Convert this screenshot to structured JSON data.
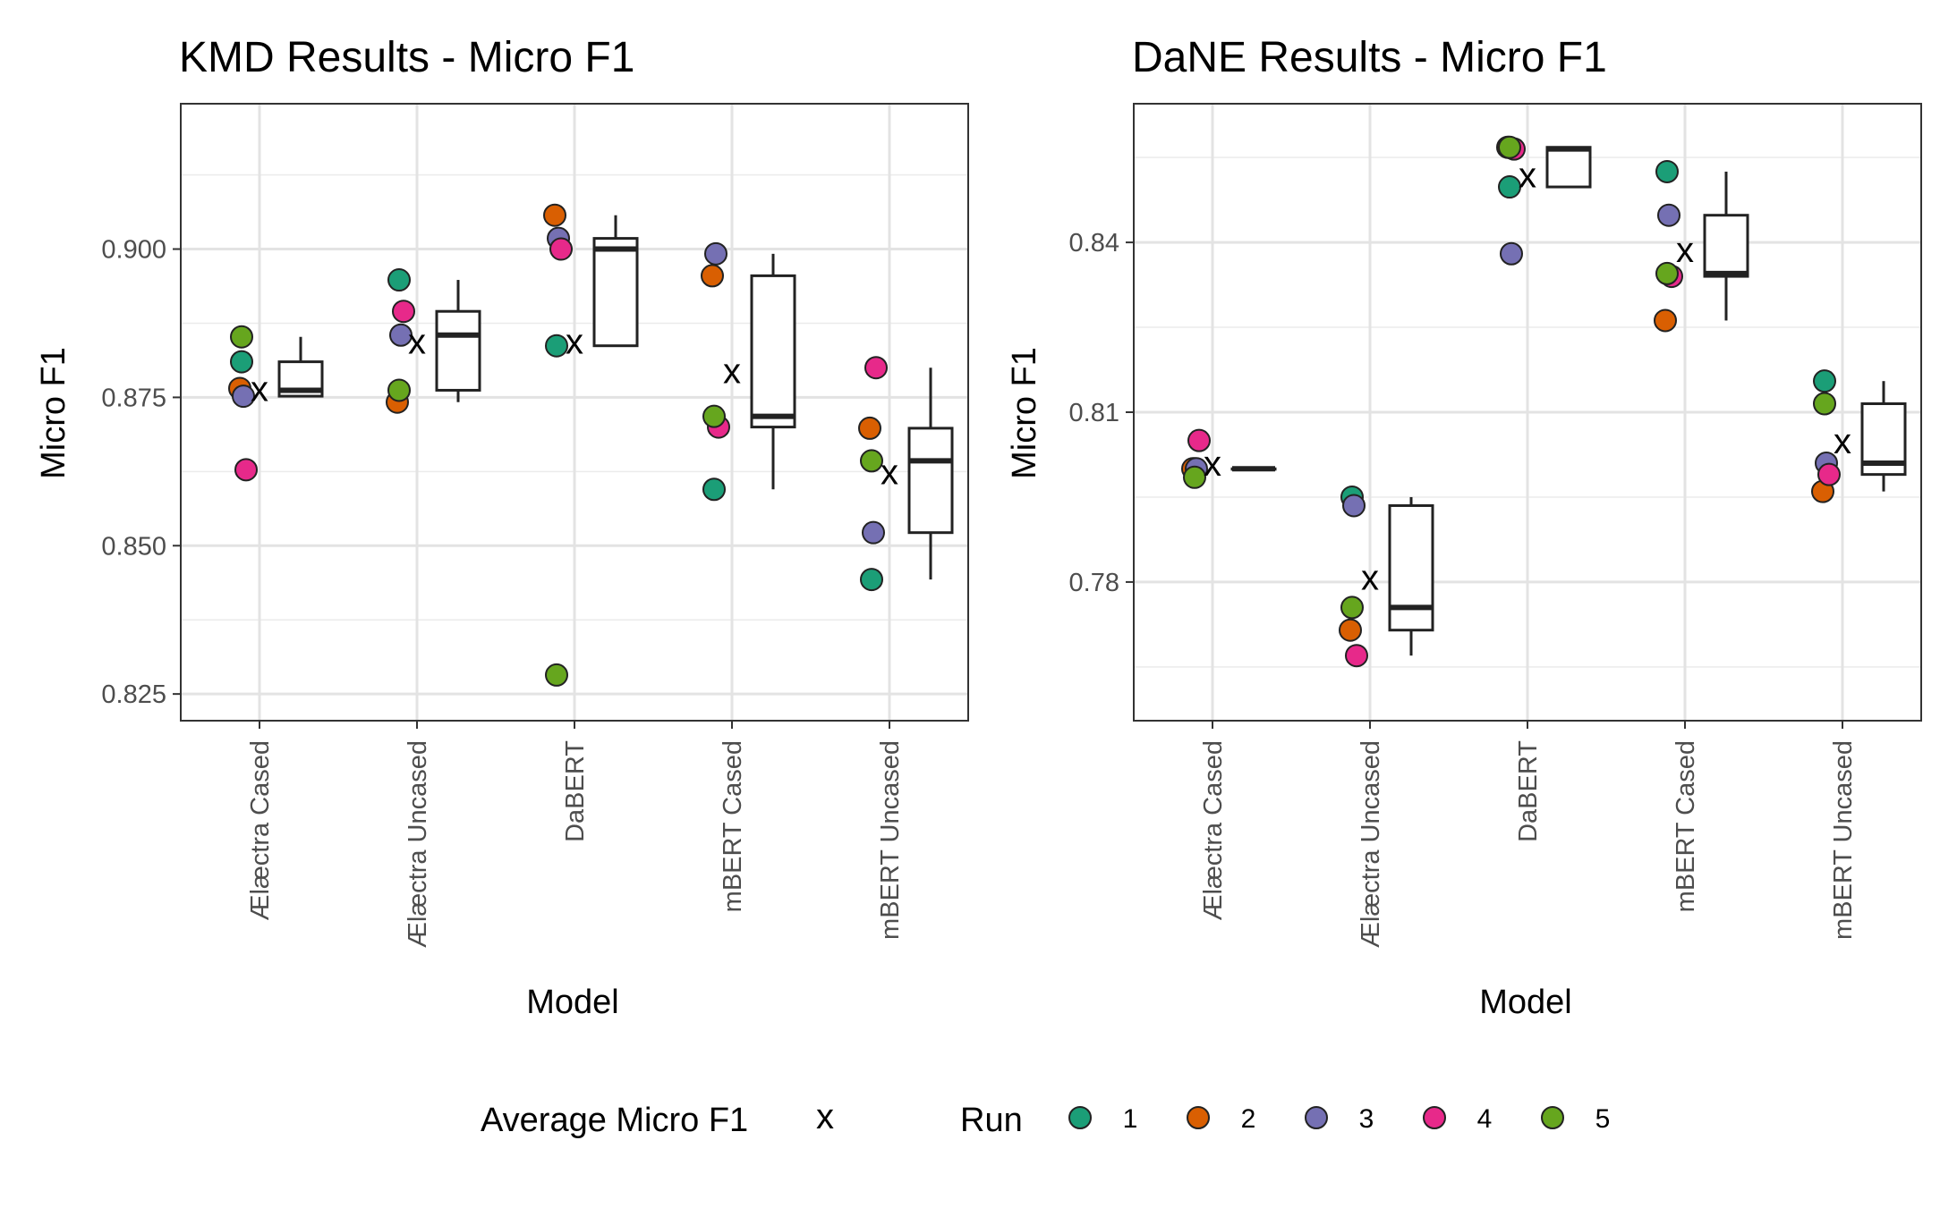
{
  "chart_data": [
    {
      "type": "box",
      "title": "KMD Results - Micro F1",
      "xlabel": "Model",
      "ylabel": "Micro F1",
      "ylim": [
        0.8205,
        0.9245
      ],
      "yticks": [
        0.825,
        0.85,
        0.875,
        0.9
      ],
      "ytick_labels": [
        "0.825",
        "0.850",
        "0.875",
        "0.900"
      ],
      "grid": true,
      "categories": [
        "Ælæctra Cased",
        "Ælæctra Uncased",
        "DaBERT",
        "mBERT Cased",
        "mBERT Uncased"
      ],
      "runs": {
        "Ælæctra Cased": [
          0.881,
          0.8765,
          0.8752,
          0.8628,
          0.8852
        ],
        "Ælæctra Uncased": [
          0.8948,
          0.8742,
          0.8855,
          0.8895,
          0.8762
        ],
        "DaBERT": [
          0.8837,
          0.9057,
          0.9018,
          0.9,
          0.8282
        ],
        "mBERT Cased": [
          0.8595,
          0.8955,
          0.8992,
          0.87,
          0.8718
        ],
        "mBERT Uncased": [
          0.8443,
          0.8698,
          0.8522,
          0.88,
          0.8643
        ]
      },
      "boxes": {
        "Ælæctra Cased": {
          "min": 0.8752,
          "q1": 0.8752,
          "median": 0.8762,
          "q3": 0.881,
          "max": 0.8852
        },
        "Ælæctra Uncased": {
          "min": 0.8742,
          "q1": 0.8762,
          "median": 0.8855,
          "q3": 0.8895,
          "max": 0.8948
        },
        "DaBERT": {
          "min": 0.8837,
          "q1": 0.8837,
          "median": 0.9,
          "q3": 0.9018,
          "max": 0.9057
        },
        "mBERT Cased": {
          "min": 0.8595,
          "q1": 0.87,
          "median": 0.8718,
          "q3": 0.8955,
          "max": 0.8992
        },
        "mBERT Uncased": {
          "min": 0.8443,
          "q1": 0.8522,
          "median": 0.8643,
          "q3": 0.8698,
          "max": 0.88
        }
      },
      "means": {
        "Ælæctra Cased": 0.8762,
        "Ælæctra Uncased": 0.8842,
        "DaBERT": 0.8842,
        "mBERT Cased": 0.8792,
        "mBERT Uncased": 0.8622
      }
    },
    {
      "type": "box",
      "title": "DaNE Results - Micro F1",
      "xlabel": "Model",
      "ylabel": "Micro F1",
      "ylim": [
        0.7555,
        0.8645
      ],
      "yticks": [
        0.78,
        0.81,
        0.84
      ],
      "ytick_labels": [
        "0.78",
        "0.81",
        "0.84"
      ],
      "grid": true,
      "categories": [
        "Ælæctra Cased",
        "Ælæctra Uncased",
        "DaBERT",
        "mBERT Cased",
        "mBERT Uncased"
      ],
      "runs": {
        "Ælæctra Cased": [
          0.8,
          0.8,
          0.8,
          0.805,
          0.7985
        ],
        "Ælæctra Uncased": [
          0.795,
          0.7715,
          0.7935,
          0.767,
          0.7755
        ],
        "DaBERT": [
          0.8498,
          0.8568,
          0.838,
          0.8565,
          0.8568
        ],
        "mBERT Cased": [
          0.8525,
          0.8262,
          0.8448,
          0.834,
          0.8345
        ],
        "mBERT Uncased": [
          0.8155,
          0.796,
          0.801,
          0.799,
          0.8115
        ]
      },
      "boxes": {
        "Ælæctra Cased": {
          "min": 0.8,
          "q1": 0.8,
          "median": 0.8,
          "q3": 0.8,
          "max": 0.8
        },
        "Ælæctra Uncased": {
          "min": 0.767,
          "q1": 0.7715,
          "median": 0.7755,
          "q3": 0.7935,
          "max": 0.795
        },
        "DaBERT": {
          "min": 0.8498,
          "q1": 0.8498,
          "median": 0.8565,
          "q3": 0.8568,
          "max": 0.8568
        },
        "mBERT Cased": {
          "min": 0.8262,
          "q1": 0.834,
          "median": 0.8345,
          "q3": 0.8448,
          "max": 0.8525
        },
        "mBERT Uncased": {
          "min": 0.796,
          "q1": 0.799,
          "median": 0.801,
          "q3": 0.8115,
          "max": 0.8155
        }
      },
      "means": {
        "Ælæctra Cased": 0.8007,
        "Ælæctra Uncased": 0.7805,
        "DaBERT": 0.8516,
        "mBERT Cased": 0.8384,
        "mBERT Uncased": 0.8046
      }
    }
  ],
  "legend": {
    "mean_label": "Average Micro F1",
    "mean_symbol": "x",
    "run_label": "Run",
    "runs": [
      {
        "label": "1",
        "color": "#1b9e77"
      },
      {
        "label": "2",
        "color": "#d95f02"
      },
      {
        "label": "3",
        "color": "#7570b3"
      },
      {
        "label": "4",
        "color": "#e7298a"
      },
      {
        "label": "5",
        "color": "#66a61e"
      }
    ]
  }
}
